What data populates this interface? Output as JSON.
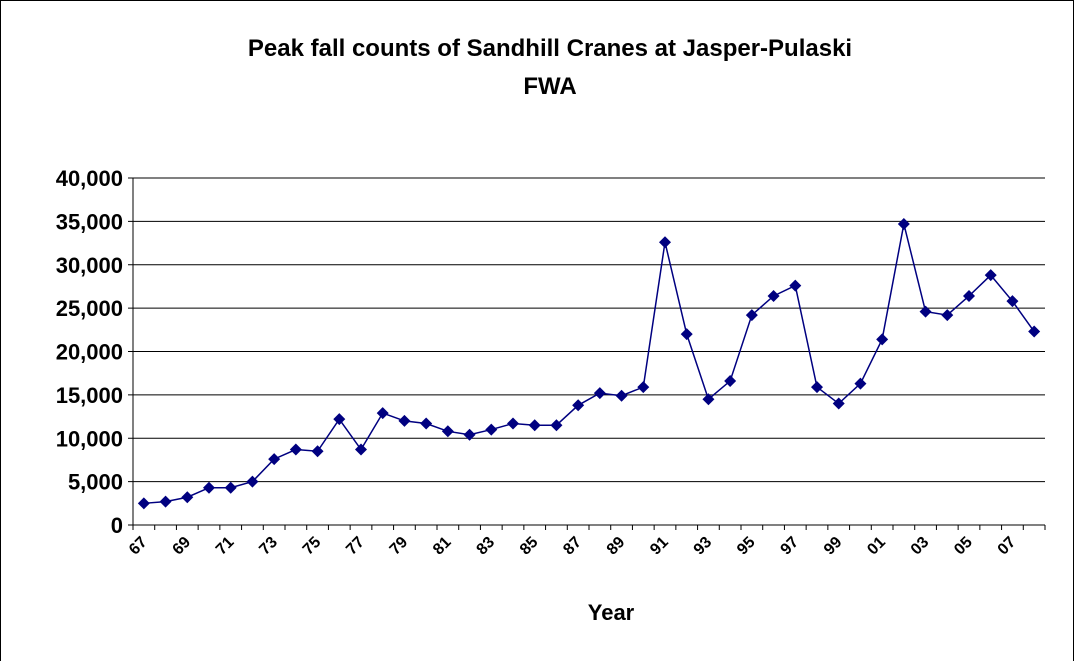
{
  "chart_data": {
    "type": "line",
    "title": "Peak fall counts of Sandhill Cranes at Jasper-Pulaski FWA",
    "x_label": "Year",
    "categories": [
      "67",
      null,
      "69",
      null,
      "71",
      null,
      "73",
      null,
      "75",
      null,
      "77",
      null,
      "79",
      null,
      "81",
      null,
      "83",
      null,
      "85",
      null,
      "87",
      null,
      "89",
      null,
      "91",
      null,
      "93",
      null,
      "95",
      null,
      "97",
      null,
      "99",
      null,
      "01",
      null,
      "03",
      null,
      "05",
      null,
      "07",
      null
    ],
    "series": [
      {
        "name": "Peak fall count",
        "color": "#000080",
        "values": [
          2500,
          2700,
          3200,
          4300,
          4300,
          5000,
          7600,
          8700,
          8500,
          12200,
          8700,
          12900,
          12000,
          11700,
          10800,
          10400,
          11000,
          11700,
          11500,
          11500,
          13800,
          15200,
          14900,
          15900,
          32600,
          22000,
          14500,
          16600,
          24200,
          26400,
          27600,
          15900,
          14000,
          16300,
          21400,
          34700,
          24600,
          24200,
          26400,
          28800,
          25800,
          22300
        ]
      }
    ],
    "ylim": [
      0,
      40000
    ],
    "yticks": [
      0,
      {
        "value": 5000,
        "label": "5,000"
      },
      {
        "value": 10000,
        "label": "10,000"
      },
      {
        "value": 15000,
        "label": "15,000"
      },
      {
        "value": 20000,
        "label": "20,000"
      },
      {
        "value": 25000,
        "label": "25,000"
      },
      {
        "value": 30000,
        "label": "30,000"
      },
      {
        "value": 35000,
        "label": "35,000"
      },
      {
        "value": 40000,
        "label": "40,000"
      }
    ],
    "grid": true
  }
}
